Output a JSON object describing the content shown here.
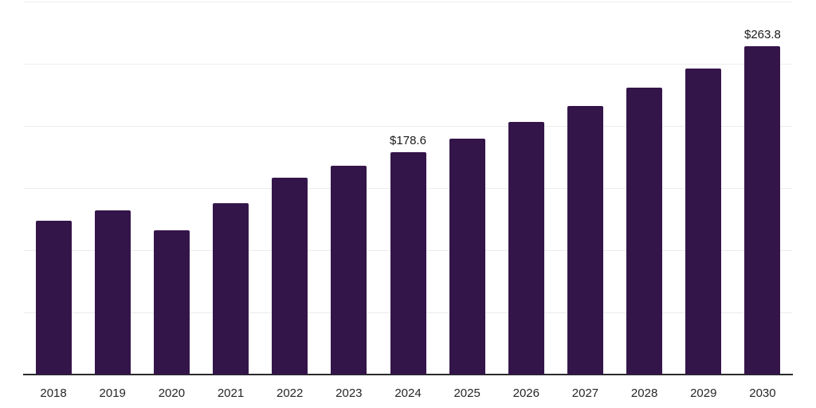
{
  "chart_data": {
    "type": "bar",
    "title": "",
    "xlabel": "",
    "ylabel": "",
    "categories": [
      "2018",
      "2019",
      "2020",
      "2021",
      "2022",
      "2023",
      "2024",
      "2025",
      "2026",
      "2027",
      "2028",
      "2029",
      "2030"
    ],
    "values": [
      123.9,
      132.2,
      116.3,
      138.0,
      158.4,
      168.0,
      178.6,
      189.7,
      203.1,
      215.9,
      230.6,
      245.9,
      263.8
    ],
    "annotations": [
      {
        "category": "2024",
        "text": "$178.6"
      },
      {
        "category": "2030",
        "text": "$263.8"
      }
    ],
    "ylim": [
      0,
      300
    ],
    "grid": true,
    "gridline_step": 50,
    "legend": "none",
    "colors": {
      "bar": "#34154A",
      "gridline": "#ECECEC",
      "axis_line": "#2B2B2B",
      "value_label": "#1A1A1A",
      "tick_label": "#262626",
      "background": "#FFFFFF"
    }
  }
}
